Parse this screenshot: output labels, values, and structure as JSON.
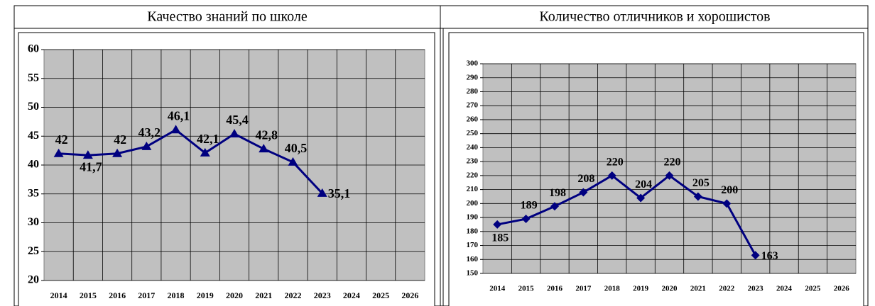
{
  "chart_data": [
    {
      "type": "line",
      "title": "Качество  знаний  по школе",
      "categories": [
        "2014",
        "2015",
        "2016",
        "2017",
        "2018",
        "2019",
        "2020",
        "2021",
        "2022",
        "2023",
        "2024",
        "2025",
        "2026"
      ],
      "values": [
        42,
        41.7,
        42,
        43.2,
        46.1,
        42.1,
        45.4,
        42.8,
        40.5,
        35.1,
        null,
        null,
        null
      ],
      "value_labels": [
        "42",
        "41,7",
        "42",
        "43,2",
        "46,1",
        "42,1",
        "45,4",
        "42,8",
        "40,5",
        "35,1",
        null,
        null,
        null
      ],
      "ylim": [
        20,
        60
      ],
      "yticks": [
        20,
        25,
        30,
        35,
        40,
        45,
        50,
        55,
        60
      ],
      "color": "#000080",
      "marker": "triangle",
      "grid": true
    },
    {
      "type": "line",
      "title": "Количество отличников и хорошистов",
      "categories": [
        "2014",
        "2015",
        "2016",
        "2017",
        "2018",
        "2019",
        "2020",
        "2021",
        "2022",
        "2023",
        "2024",
        "2025",
        "2026"
      ],
      "values": [
        185,
        189,
        198,
        208,
        220,
        204,
        220,
        205,
        200,
        163,
        null,
        null,
        null
      ],
      "ylim": [
        150,
        300
      ],
      "yticks": [
        150,
        160,
        170,
        180,
        190,
        200,
        210,
        220,
        230,
        240,
        250,
        260,
        270,
        280,
        290,
        300
      ],
      "color": "#000080",
      "marker": "diamond",
      "grid": true
    }
  ]
}
